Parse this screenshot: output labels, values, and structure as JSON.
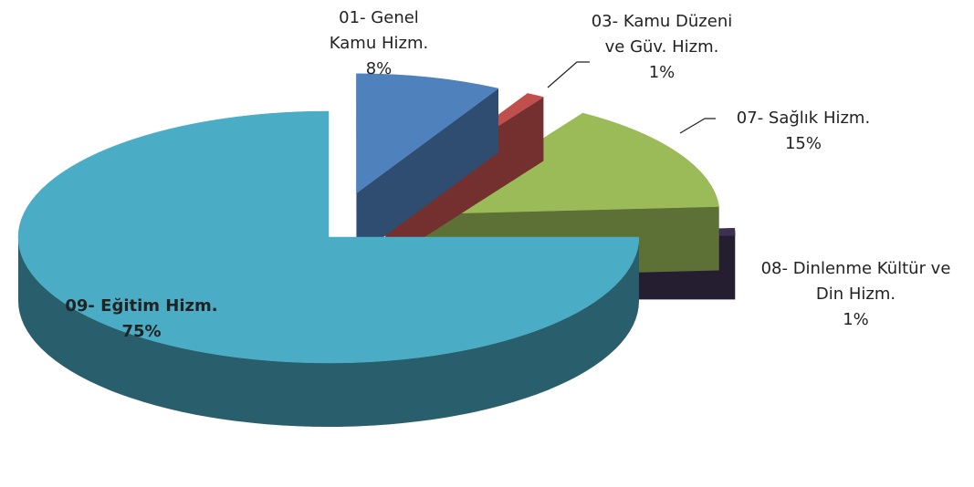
{
  "chart_data": {
    "type": "pie3d",
    "categories": [
      "01- Genel Kamu Hizm.",
      "03- Kamu Düzeni ve Güv. Hizm.",
      "07- Sağlık Hizm.",
      "08- Dinlenme Kültür ve Din Hizm.",
      "09- Eğitim Hizm."
    ],
    "values": [
      8,
      1,
      15,
      1,
      75
    ],
    "value_labels": [
      "8%",
      "1%",
      "15%",
      "1%",
      "75%"
    ],
    "colors": [
      "#4f81bd",
      "#c0504d",
      "#9bbb59",
      "#3d3050",
      "#4bacc6"
    ]
  }
}
